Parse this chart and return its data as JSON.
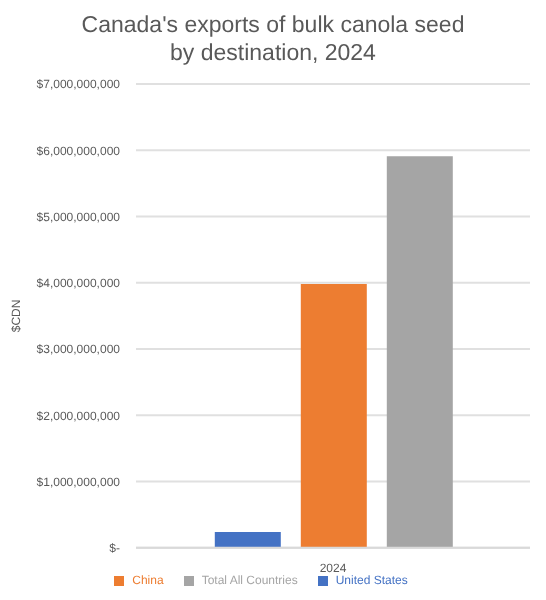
{
  "chart_data": {
    "type": "bar",
    "title": "Canada's exports of bulk canola seed by destination, 2024",
    "ylabel": "$CDN",
    "categories": [
      "2024"
    ],
    "series": [
      {
        "name": "United States",
        "color": "#4472c4",
        "values": [
          240000000
        ]
      },
      {
        "name": "China",
        "color": "#ed7d31",
        "values": [
          3980000000
        ]
      },
      {
        "name": "Total All Countries",
        "color": "#a5a5a5",
        "values": [
          5910000000
        ]
      }
    ],
    "ylim": [
      0,
      7000000000
    ],
    "yticks": [
      {
        "value": 0,
        "label": "$-"
      },
      {
        "value": 1000000000,
        "label": "$1,000,000,000"
      },
      {
        "value": 2000000000,
        "label": "$2,000,000,000"
      },
      {
        "value": 3000000000,
        "label": "$3,000,000,000"
      },
      {
        "value": 4000000000,
        "label": "$4,000,000,000"
      },
      {
        "value": 5000000000,
        "label": "$5,000,000,000"
      },
      {
        "value": 6000000000,
        "label": "$6,000,000,000"
      },
      {
        "value": 7000000000,
        "label": "$7,000,000,000"
      }
    ],
    "grid": "y",
    "legend": "bottom"
  }
}
